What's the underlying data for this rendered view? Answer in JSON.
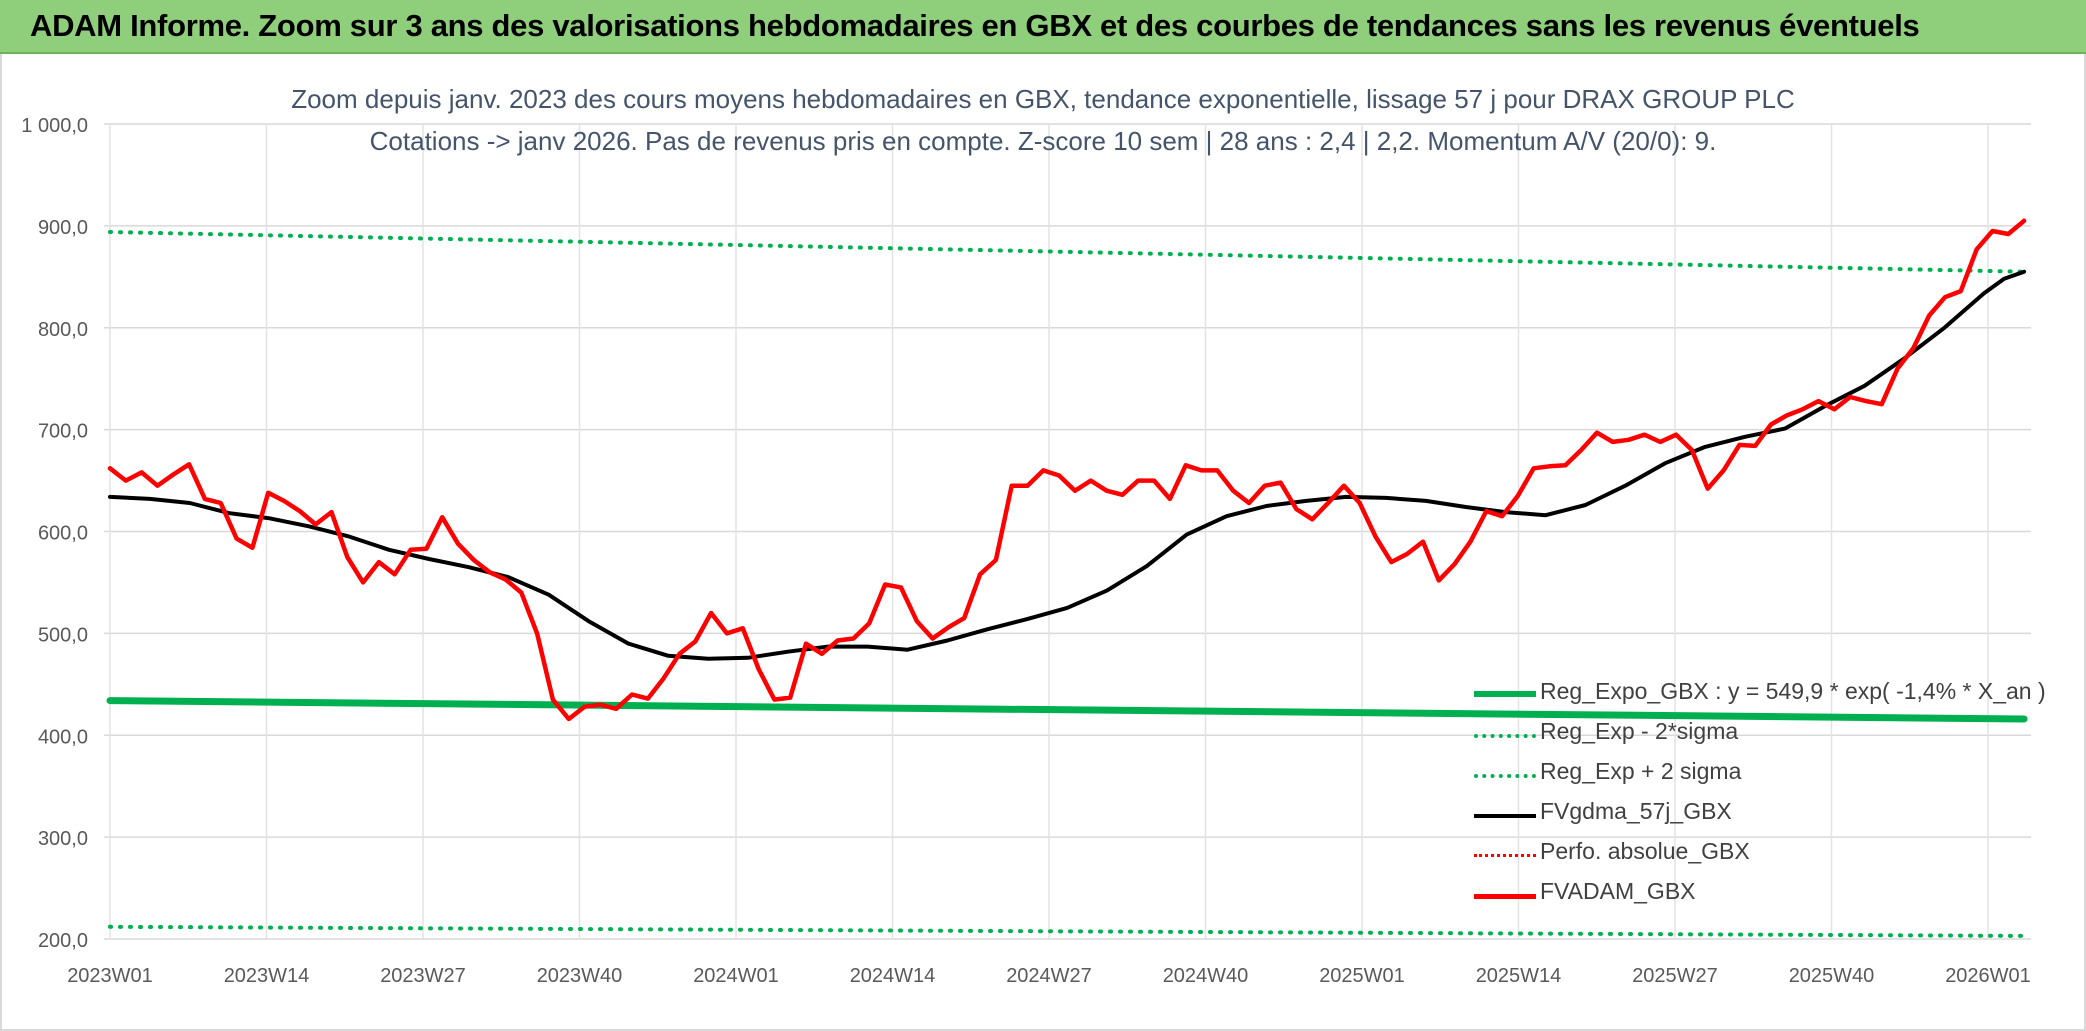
{
  "banner": {
    "title": "ADAM Informe. Zoom sur 3 ans des valorisations hebdomadaires en GBX et des courbes de tendances sans les revenus éventuels"
  },
  "chart_data": {
    "type": "line",
    "title": "Zoom depuis janv. 2023 des cours moyens hebdomadaires en GBX, tendance exponentielle, lissage 57 j pour DRAX GROUP PLC",
    "subtitle": "Cotations -> janv 2026. Pas de revenus pris en compte. Z-score 10 sem | 28 ans : 2,4 | 2,2. Momentum A/V (20/0): 9.",
    "xlabel": "",
    "ylabel": "",
    "ylim": [
      200,
      1000
    ],
    "y_ticks": [
      "200,0",
      "300,0",
      "400,0",
      "500,0",
      "600,0",
      "700,0",
      "800,0",
      "900,0",
      "1 000,0"
    ],
    "y_tick_values": [
      200,
      300,
      400,
      500,
      600,
      700,
      800,
      900,
      1000
    ],
    "x_tick_labels": [
      "2023W01",
      "2023W14",
      "2023W27",
      "2023W40",
      "2024W01",
      "2024W14",
      "2024W27",
      "2024W40",
      "2025W01",
      "2025W14",
      "2025W27",
      "2025W40",
      "2026W01"
    ],
    "n_points": 160,
    "grid": "on",
    "legend_position": "bottom-right",
    "series": [
      {
        "name": "Reg_Expo_GBX : y = 549,9 * exp( -1,4% *  X_an )",
        "color": "#00b050",
        "style": "solid-thick",
        "start": 434,
        "end": 416
      },
      {
        "name": "Reg_Exp - 2*sigma",
        "color": "#00b050",
        "style": "dotted",
        "start": 212,
        "end": 203
      },
      {
        "name": "Reg_Exp + 2 sigma",
        "color": "#00b050",
        "style": "dotted",
        "start": 894,
        "end": 855
      },
      {
        "name": "FVgdma_57j_GBX",
        "color": "#000000",
        "style": "solid",
        "anchors": [
          [
            0,
            634
          ],
          [
            4,
            632
          ],
          [
            8,
            628
          ],
          [
            12,
            618
          ],
          [
            16,
            613
          ],
          [
            20,
            605
          ],
          [
            24,
            595
          ],
          [
            28,
            582
          ],
          [
            32,
            573
          ],
          [
            36,
            565
          ],
          [
            40,
            555
          ],
          [
            44,
            538
          ],
          [
            48,
            512
          ],
          [
            52,
            490
          ],
          [
            56,
            478
          ],
          [
            60,
            475
          ],
          [
            64,
            476
          ],
          [
            68,
            482
          ],
          [
            72,
            487
          ],
          [
            76,
            487
          ],
          [
            80,
            484
          ],
          [
            84,
            493
          ],
          [
            88,
            504
          ],
          [
            92,
            514
          ],
          [
            96,
            525
          ],
          [
            100,
            542
          ],
          [
            104,
            566
          ],
          [
            108,
            597
          ],
          [
            112,
            615
          ],
          [
            116,
            625
          ],
          [
            120,
            630
          ],
          [
            124,
            634
          ],
          [
            128,
            633
          ],
          [
            132,
            630
          ],
          [
            136,
            624
          ],
          [
            140,
            619
          ],
          [
            144,
            616
          ],
          [
            148,
            626
          ],
          [
            152,
            645
          ],
          [
            156,
            667
          ],
          [
            160,
            683
          ],
          [
            164,
            693
          ],
          [
            168,
            701
          ],
          [
            172,
            723
          ],
          [
            176,
            743
          ],
          [
            180,
            770
          ],
          [
            184,
            800
          ],
          [
            188,
            834
          ],
          [
            190,
            848
          ],
          [
            192,
            855
          ]
        ]
      },
      {
        "name": "Perfo. absolue_GBX",
        "color": "#ff0000",
        "style": "dotted"
      },
      {
        "name": "FVADAM_GBX",
        "color": "#ff0000",
        "style": "solid-thick",
        "anchors": [
          [
            0,
            662
          ],
          [
            2,
            650
          ],
          [
            4,
            658
          ],
          [
            6,
            645
          ],
          [
            8,
            656
          ],
          [
            10,
            666
          ],
          [
            12,
            632
          ],
          [
            14,
            628
          ],
          [
            16,
            593
          ],
          [
            18,
            584
          ],
          [
            20,
            638
          ],
          [
            22,
            630
          ],
          [
            24,
            620
          ],
          [
            26,
            607
          ],
          [
            28,
            619
          ],
          [
            30,
            575
          ],
          [
            32,
            550
          ],
          [
            34,
            570
          ],
          [
            36,
            558
          ],
          [
            38,
            582
          ],
          [
            40,
            583
          ],
          [
            42,
            614
          ],
          [
            44,
            588
          ],
          [
            46,
            572
          ],
          [
            48,
            560
          ],
          [
            50,
            553
          ],
          [
            52,
            540
          ],
          [
            54,
            500
          ],
          [
            56,
            435
          ],
          [
            58,
            416
          ],
          [
            60,
            428
          ],
          [
            62,
            430
          ],
          [
            64,
            426
          ],
          [
            66,
            440
          ],
          [
            68,
            436
          ],
          [
            70,
            456
          ],
          [
            72,
            480
          ],
          [
            74,
            492
          ],
          [
            76,
            520
          ],
          [
            78,
            500
          ],
          [
            80,
            505
          ],
          [
            82,
            465
          ],
          [
            84,
            435
          ],
          [
            86,
            437
          ],
          [
            88,
            490
          ],
          [
            90,
            480
          ],
          [
            92,
            493
          ],
          [
            94,
            495
          ],
          [
            96,
            510
          ],
          [
            98,
            548
          ],
          [
            100,
            545
          ],
          [
            102,
            512
          ],
          [
            104,
            495
          ],
          [
            106,
            506
          ],
          [
            108,
            515
          ],
          [
            110,
            558
          ],
          [
            112,
            572
          ],
          [
            114,
            645
          ],
          [
            116,
            645
          ],
          [
            118,
            660
          ],
          [
            120,
            655
          ],
          [
            122,
            640
          ],
          [
            124,
            650
          ],
          [
            126,
            640
          ],
          [
            128,
            636
          ],
          [
            130,
            650
          ],
          [
            132,
            650
          ],
          [
            134,
            632
          ],
          [
            136,
            665
          ],
          [
            138,
            660
          ],
          [
            140,
            660
          ],
          [
            142,
            640
          ],
          [
            144,
            628
          ],
          [
            146,
            645
          ],
          [
            148,
            648
          ],
          [
            150,
            622
          ],
          [
            152,
            612
          ],
          [
            154,
            628
          ],
          [
            156,
            645
          ],
          [
            158,
            628
          ],
          [
            160,
            595
          ],
          [
            162,
            570
          ],
          [
            164,
            578
          ],
          [
            166,
            590
          ],
          [
            168,
            552
          ],
          [
            170,
            568
          ],
          [
            172,
            590
          ],
          [
            174,
            620
          ],
          [
            176,
            615
          ],
          [
            178,
            635
          ],
          [
            180,
            662
          ],
          [
            182,
            664
          ],
          [
            184,
            665
          ],
          [
            186,
            680
          ],
          [
            188,
            697
          ],
          [
            190,
            688
          ],
          [
            192,
            690
          ],
          [
            194,
            695
          ],
          [
            196,
            688
          ],
          [
            198,
            695
          ],
          [
            200,
            680
          ],
          [
            202,
            642
          ],
          [
            204,
            660
          ],
          [
            206,
            685
          ],
          [
            208,
            684
          ],
          [
            210,
            705
          ],
          [
            212,
            714
          ],
          [
            214,
            720
          ],
          [
            216,
            728
          ],
          [
            218,
            720
          ],
          [
            220,
            732
          ],
          [
            222,
            728
          ],
          [
            224,
            725
          ],
          [
            226,
            760
          ],
          [
            228,
            780
          ],
          [
            230,
            812
          ],
          [
            232,
            830
          ],
          [
            234,
            836
          ],
          [
            236,
            877
          ],
          [
            238,
            895
          ],
          [
            240,
            892
          ],
          [
            242,
            905
          ]
        ]
      }
    ]
  }
}
